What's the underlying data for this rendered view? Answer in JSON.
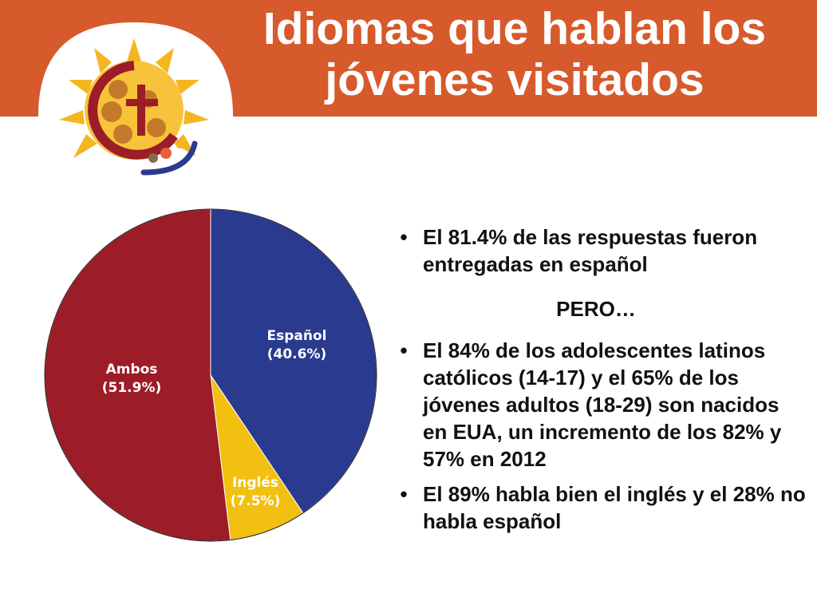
{
  "header": {
    "title_line1": "Idiomas que hablan los",
    "title_line2": "jóvenes visitados"
  },
  "logo": {
    "icon_name": "ministry-logo-sun-cross-icon"
  },
  "chart_data": {
    "type": "pie",
    "slices": [
      {
        "label": "Español",
        "value_label": "(40.6%)",
        "value": 40.6,
        "color": "#2a3a8f"
      },
      {
        "label": "Inglés",
        "value_label": "(7.5%)",
        "value": 7.5,
        "color": "#f2c010"
      },
      {
        "label": "Ambos",
        "value_label": "(51.9%)",
        "value": 51.9,
        "color": "#9c1c28"
      }
    ]
  },
  "bullets": [
    {
      "marker": "•",
      "text": "El 81.4% de las respuestas fueron entregadas en español"
    },
    {
      "marker": "•",
      "text": "El 84% de los adolescentes latinos católicos (14-17) y el 65% de los jóvenes adultos (18-29) son nacidos en EUA, un incremento de los 82% y 57% en 2012"
    },
    {
      "marker": "•",
      "text": "El 89% habla bien el inglés y el 28% no habla español"
    }
  ],
  "pero": "PERO…",
  "colors": {
    "header": "#d65a2b",
    "espanol": "#2a3a8f",
    "ingles": "#f2c010",
    "ambos": "#9c1c28"
  }
}
